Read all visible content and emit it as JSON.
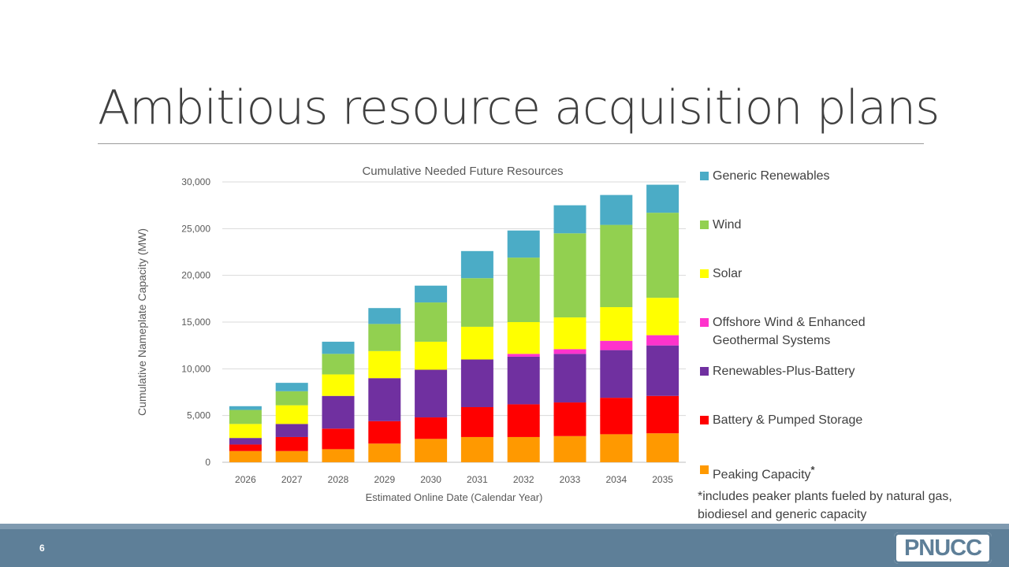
{
  "slide": {
    "title": "Ambitious resource acquisition plans",
    "page_number": "6",
    "logo": "PNUCC",
    "footnote": "*includes peaker plants fueled by natural gas, biodiesel and generic capacity"
  },
  "chart_data": {
    "type": "bar",
    "stacked": true,
    "title": "Cumulative Needed Future Resources",
    "xlabel": "Estimated Online Date (Calendar Year)",
    "ylabel": "Cumulative Nameplate Capacity (MW)",
    "ylim": [
      0,
      30000
    ],
    "yticks": [
      0,
      5000,
      10000,
      15000,
      20000,
      25000,
      30000
    ],
    "ytick_labels": [
      "0",
      "5,000",
      "10,000",
      "15,000",
      "20,000",
      "25,000",
      "30,000"
    ],
    "grid": true,
    "legend_position": "right",
    "categories": [
      "2026",
      "2027",
      "2028",
      "2029",
      "2030",
      "2031",
      "2032",
      "2033",
      "2034",
      "2035"
    ],
    "series": [
      {
        "name": "Peaking Capacity",
        "color": "#ff9900",
        "values": [
          1200,
          1200,
          1400,
          2000,
          2500,
          2700,
          2700,
          2800,
          3000,
          3100
        ]
      },
      {
        "name": "Battery & Pumped Storage",
        "color": "#ff0000",
        "values": [
          700,
          1500,
          2200,
          2400,
          2300,
          3200,
          3500,
          3600,
          3900,
          4000
        ]
      },
      {
        "name": "Renewables-Plus-Battery",
        "color": "#7030a0",
        "values": [
          700,
          1400,
          3500,
          4600,
          5100,
          5100,
          5100,
          5200,
          5100,
          5400
        ]
      },
      {
        "name": "Offshore Wind & Enhanced Geothermal Systems",
        "color": "#ff33cc",
        "values": [
          0,
          0,
          0,
          0,
          0,
          0,
          300,
          500,
          1000,
          1100
        ]
      },
      {
        "name": "Solar",
        "color": "#ffff00",
        "values": [
          1500,
          2000,
          2300,
          2900,
          3000,
          3500,
          3400,
          3400,
          3600,
          4000
        ]
      },
      {
        "name": "Wind",
        "color": "#92d050",
        "values": [
          1500,
          1500,
          2200,
          2900,
          4200,
          5200,
          6900,
          9000,
          8800,
          9100
        ]
      },
      {
        "name": "Generic Renewables",
        "color": "#4bacc6",
        "values": [
          400,
          900,
          1300,
          1700,
          1800,
          2900,
          2900,
          3000,
          3200,
          3000
        ]
      }
    ]
  },
  "legend": {
    "items": [
      {
        "label": "Generic Renewables",
        "color": "#4bacc6"
      },
      {
        "label": "Wind",
        "color": "#92d050"
      },
      {
        "label": "Solar",
        "color": "#ffff00"
      },
      {
        "label": "Offshore Wind & Enhanced",
        "label2": "Geothermal Systems",
        "color": "#ff33cc"
      },
      {
        "label": "Renewables-Plus-Battery",
        "color": "#7030a0"
      },
      {
        "label": "Battery & Pumped Storage",
        "color": "#ff0000"
      },
      {
        "label": "Peaking Capacity",
        "marker": "*",
        "color": "#ff9900"
      }
    ]
  }
}
